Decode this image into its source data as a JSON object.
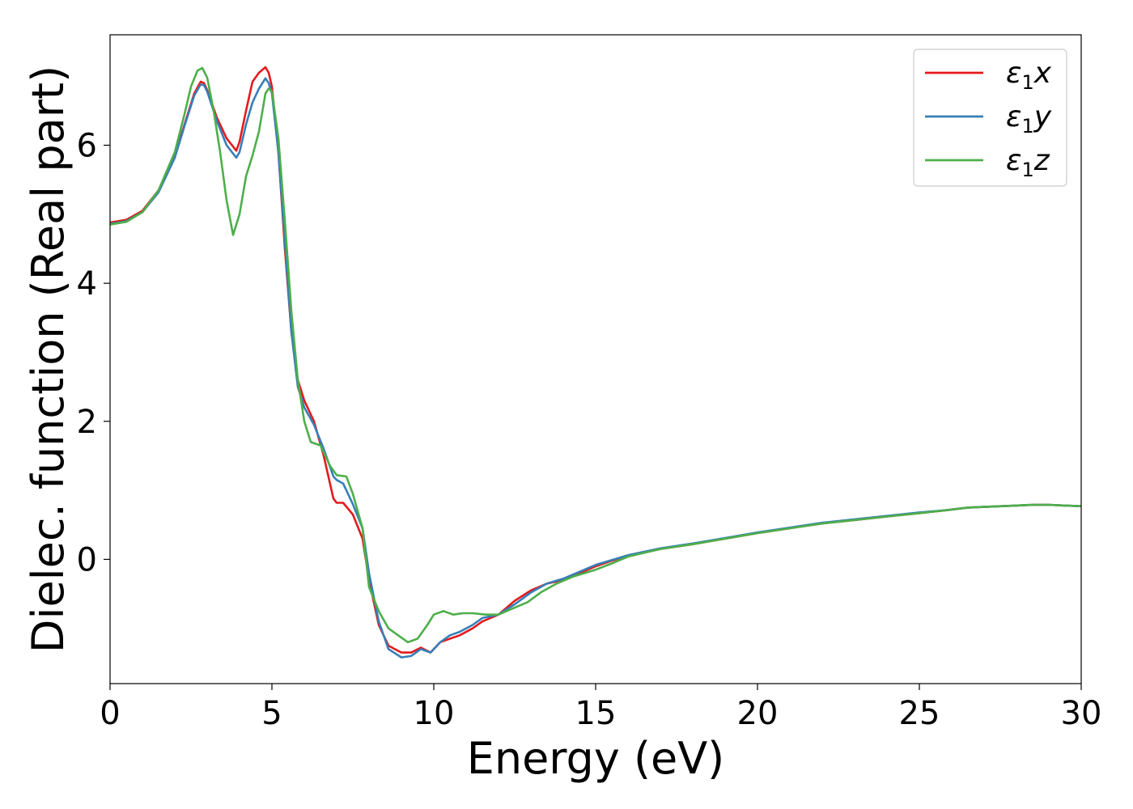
{
  "chart_data": {
    "type": "line",
    "title": "",
    "xlabel": "Energy (eV)",
    "ylabel": "Dielec. function (Real part)",
    "xlim": [
      0,
      30
    ],
    "ylim": [
      -1.8,
      7.6
    ],
    "xticks": [
      "0",
      "5",
      "10",
      "15",
      "20",
      "25",
      "30"
    ],
    "yticks": [
      "0",
      "2",
      "4",
      "6"
    ],
    "grid": false,
    "legend": "top-right",
    "series": [
      {
        "name": "ε1x",
        "label_main": "ε",
        "label_sub": "1",
        "label_tail": "x",
        "color": "#e41a1c",
        "x": [
          0,
          0.5,
          1.0,
          1.5,
          2.0,
          2.3,
          2.6,
          2.8,
          2.9,
          3.0,
          3.3,
          3.6,
          3.9,
          4.0,
          4.2,
          4.4,
          4.6,
          4.8,
          4.9,
          5.0,
          5.2,
          5.4,
          5.6,
          5.8,
          6.0,
          6.3,
          6.6,
          6.9,
          7.0,
          7.2,
          7.5,
          7.8,
          8.0,
          8.3,
          8.6,
          9.0,
          9.3,
          9.6,
          9.9,
          10.2,
          10.5,
          10.8,
          11.2,
          11.5,
          12.0,
          12.5,
          13.0,
          13.5,
          14.0,
          14.5,
          15.0,
          15.5,
          16.0,
          17.0,
          18.0,
          19.0,
          20.0,
          21.0,
          22.0,
          23.0,
          24.0,
          25.0,
          25.8,
          26.5,
          27.0,
          28.0,
          28.5,
          29.0,
          29.5,
          30.0
        ],
        "y": [
          4.88,
          4.92,
          5.05,
          5.35,
          5.85,
          6.3,
          6.75,
          6.92,
          6.9,
          6.8,
          6.4,
          6.1,
          5.92,
          6.05,
          6.5,
          6.92,
          7.05,
          7.13,
          7.05,
          6.85,
          5.9,
          4.5,
          3.3,
          2.6,
          2.3,
          2.0,
          1.5,
          0.88,
          0.82,
          0.82,
          0.65,
          0.3,
          -0.3,
          -0.95,
          -1.25,
          -1.35,
          -1.35,
          -1.28,
          -1.35,
          -1.2,
          -1.15,
          -1.1,
          -1.0,
          -0.9,
          -0.8,
          -0.6,
          -0.45,
          -0.35,
          -0.3,
          -0.2,
          -0.1,
          -0.02,
          0.05,
          0.15,
          0.22,
          0.3,
          0.38,
          0.45,
          0.52,
          0.57,
          0.62,
          0.67,
          0.71,
          0.75,
          0.76,
          0.78,
          0.79,
          0.79,
          0.78,
          0.77
        ]
      },
      {
        "name": "ε1y",
        "label_main": "ε",
        "label_sub": "1",
        "label_tail": "y",
        "color": "#377eb8",
        "x": [
          0,
          0.5,
          1.0,
          1.5,
          2.0,
          2.3,
          2.6,
          2.8,
          2.9,
          3.0,
          3.3,
          3.6,
          3.9,
          4.0,
          4.2,
          4.4,
          4.6,
          4.8,
          4.9,
          5.0,
          5.2,
          5.4,
          5.6,
          5.8,
          6.0,
          6.3,
          6.6,
          6.9,
          7.0,
          7.2,
          7.5,
          7.8,
          8.0,
          8.3,
          8.6,
          9.0,
          9.3,
          9.6,
          9.9,
          10.2,
          10.5,
          10.8,
          11.2,
          11.5,
          12.0,
          12.5,
          13.0,
          13.5,
          14.0,
          14.5,
          15.0,
          15.5,
          16.0,
          17.0,
          18.0,
          19.0,
          20.0,
          21.0,
          22.0,
          23.0,
          24.0,
          25.0,
          25.8,
          26.5,
          27.0,
          28.0,
          28.5,
          29.0,
          29.5,
          30.0
        ],
        "y": [
          4.86,
          4.9,
          5.03,
          5.32,
          5.82,
          6.28,
          6.72,
          6.88,
          6.87,
          6.78,
          6.35,
          6.0,
          5.82,
          5.9,
          6.3,
          6.62,
          6.82,
          6.97,
          6.9,
          6.75,
          5.9,
          4.6,
          3.3,
          2.5,
          2.2,
          1.95,
          1.6,
          1.2,
          1.15,
          1.1,
          0.8,
          0.45,
          -0.2,
          -0.9,
          -1.3,
          -1.42,
          -1.4,
          -1.3,
          -1.35,
          -1.2,
          -1.1,
          -1.05,
          -0.95,
          -0.85,
          -0.8,
          -0.65,
          -0.48,
          -0.35,
          -0.28,
          -0.18,
          -0.08,
          -0.01,
          0.06,
          0.16,
          0.23,
          0.31,
          0.39,
          0.46,
          0.53,
          0.58,
          0.63,
          0.68,
          0.71,
          0.75,
          0.76,
          0.78,
          0.79,
          0.79,
          0.78,
          0.77
        ]
      },
      {
        "name": "ε1z",
        "label_main": "ε",
        "label_sub": "1",
        "label_tail": "z",
        "color": "#4daf4a",
        "x": [
          0,
          0.5,
          1.0,
          1.5,
          2.0,
          2.3,
          2.5,
          2.7,
          2.85,
          3.0,
          3.2,
          3.4,
          3.6,
          3.8,
          4.0,
          4.2,
          4.4,
          4.6,
          4.8,
          4.9,
          5.0,
          5.2,
          5.4,
          5.6,
          5.8,
          6.0,
          6.2,
          6.5,
          6.8,
          7.0,
          7.3,
          7.5,
          7.8,
          8.0,
          8.3,
          8.6,
          8.9,
          9.2,
          9.5,
          9.8,
          10.0,
          10.3,
          10.6,
          10.9,
          11.2,
          11.6,
          12.0,
          12.5,
          12.9,
          13.3,
          13.8,
          14.3,
          15.0,
          15.5,
          16.0,
          17.0,
          18.0,
          19.0,
          20.0,
          21.0,
          22.0,
          23.0,
          24.0,
          25.0,
          25.8,
          26.5,
          27.0,
          28.0,
          28.5,
          29.0,
          29.5,
          30.0
        ],
        "y": [
          4.85,
          4.89,
          5.03,
          5.35,
          5.9,
          6.45,
          6.85,
          7.08,
          7.12,
          6.98,
          6.5,
          5.9,
          5.2,
          4.7,
          5.0,
          5.55,
          5.85,
          6.2,
          6.75,
          6.82,
          6.78,
          6.1,
          4.9,
          3.6,
          2.6,
          2.0,
          1.7,
          1.65,
          1.35,
          1.22,
          1.2,
          0.95,
          0.45,
          -0.4,
          -0.75,
          -1.0,
          -1.1,
          -1.2,
          -1.15,
          -0.95,
          -0.8,
          -0.75,
          -0.8,
          -0.78,
          -0.78,
          -0.8,
          -0.8,
          -0.7,
          -0.62,
          -0.48,
          -0.35,
          -0.25,
          -0.15,
          -0.06,
          0.04,
          0.15,
          0.22,
          0.3,
          0.38,
          0.45,
          0.52,
          0.57,
          0.62,
          0.67,
          0.71,
          0.75,
          0.76,
          0.78,
          0.79,
          0.79,
          0.78,
          0.77
        ]
      }
    ]
  }
}
